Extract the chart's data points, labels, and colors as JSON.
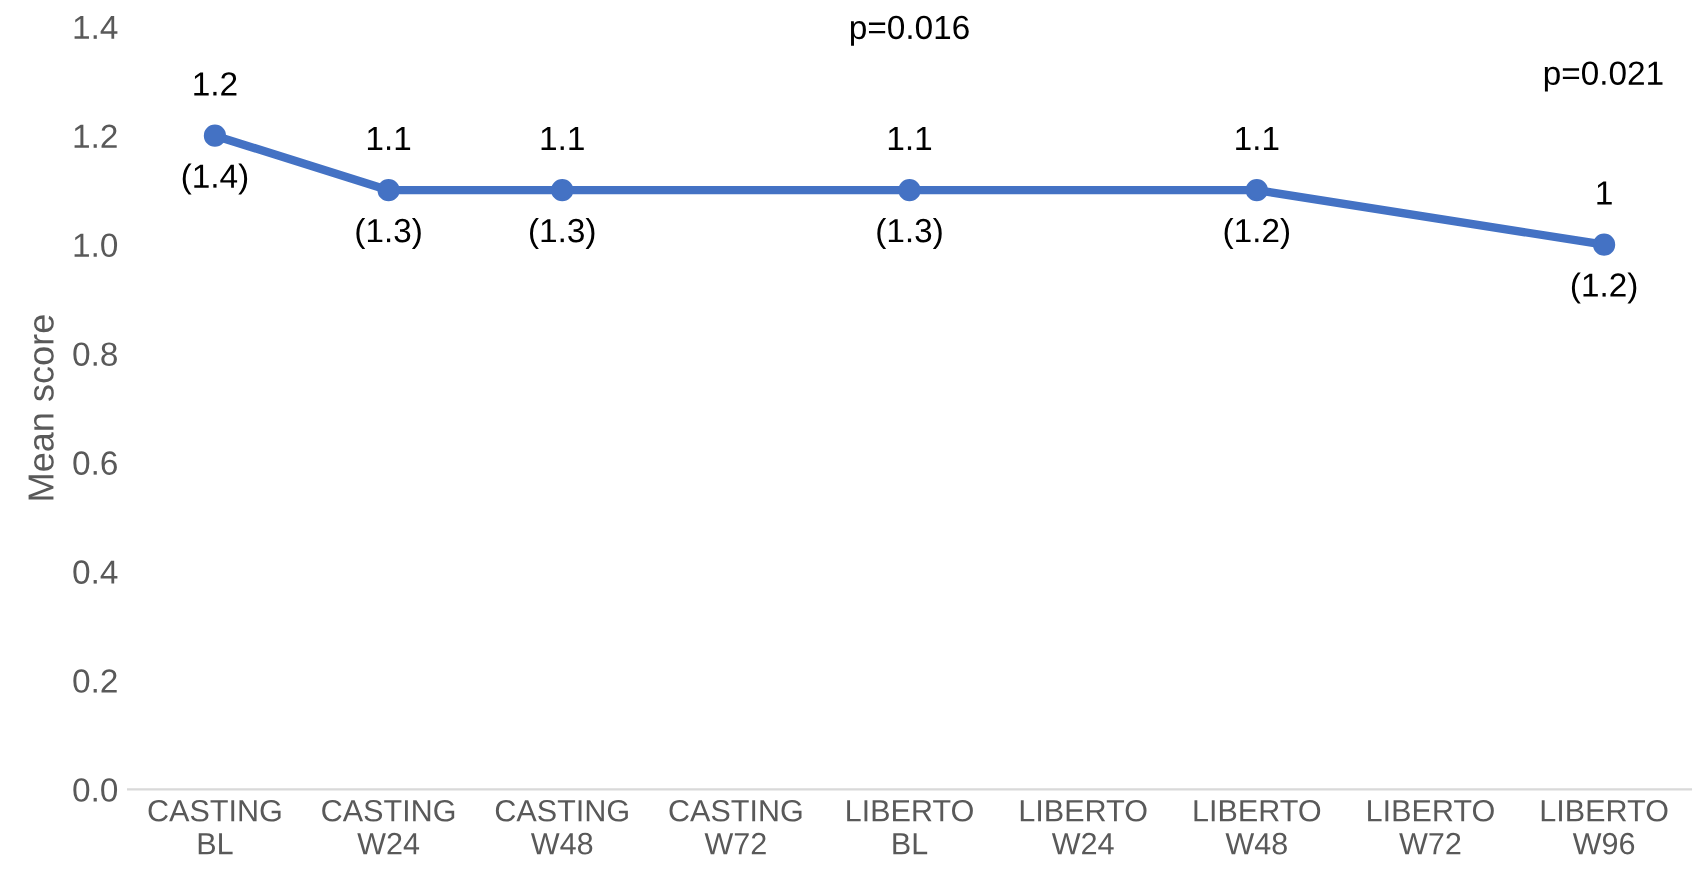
{
  "chart_data": {
    "type": "line",
    "ylabel": "Mean score",
    "categories": [
      "CASTING\nBL",
      "CASTING\nW24",
      "CASTING\nW48",
      "CASTING\nW72",
      "LIBERTO\nBL",
      "LIBERTO\nW24",
      "LIBERTO\nW48",
      "LIBERTO\nW72",
      "LIBERTO\nW96"
    ],
    "series": [
      {
        "color": "#4472c4",
        "values": [
          1.2,
          1.1,
          1.1,
          null,
          1.1,
          null,
          1.1,
          null,
          1
        ]
      }
    ],
    "ylim": [
      0,
      1.4
    ],
    "yticks": [
      {
        "value": 0,
        "label": "0.0"
      },
      {
        "value": 0.2,
        "label": "0.2"
      },
      {
        "value": 0.4,
        "label": "0.4"
      },
      {
        "value": 0.6,
        "label": "0.6"
      },
      {
        "value": 0.8,
        "label": "0.8"
      },
      {
        "value": 1.0,
        "label": "1.0"
      },
      {
        "value": 1.2,
        "label": "1.2"
      },
      {
        "value": 1.4,
        "label": "1.4"
      }
    ],
    "marker": "circle",
    "line_style": "solid",
    "grid": false,
    "data_labels": true,
    "annotations": [
      {
        "text": "(1.4)",
        "x": "CASTING\nBL",
        "y": 1.2
      },
      {
        "text": "(1.3)",
        "x": "CASTING\nW24",
        "y": 1.1
      },
      {
        "text": "(1.3)",
        "x": "CASTING\nW48",
        "y": 1.1
      },
      {
        "text": "(1.3)",
        "x": "LIBERTO\nBL",
        "y": 1.1
      },
      {
        "text": "(1.2)",
        "x": "LIBERTO\nW48",
        "y": 1.1
      },
      {
        "text": "(1.2)",
        "x": "LIBERTO\nW96",
        "y": 1
      },
      "p=0.016",
      "p=0.021"
    ]
  }
}
